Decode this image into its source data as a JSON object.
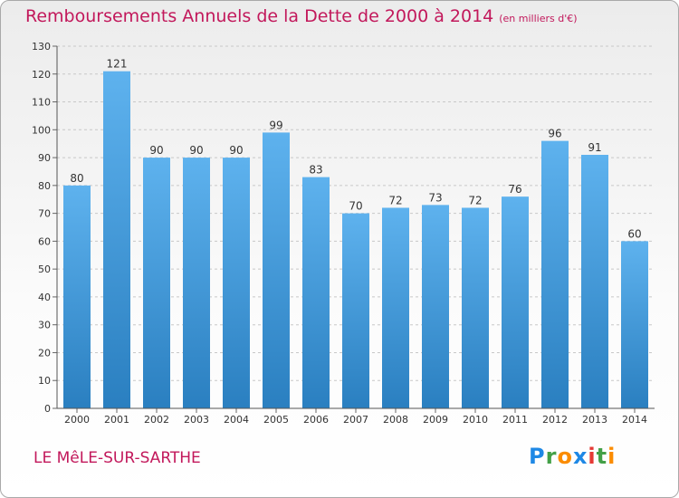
{
  "header": {
    "title": "Remboursements Annuels de la Dette de 2000 à 2014",
    "unit": "(en milliers d'€)"
  },
  "footer": {
    "place": "LE MêLE-SUR-SARTHE"
  },
  "logo": {
    "letters": [
      {
        "ch": "P",
        "color": "#1e88e5"
      },
      {
        "ch": "r",
        "color": "#43a047"
      },
      {
        "ch": "o",
        "color": "#fb8c00"
      },
      {
        "ch": "x",
        "color": "#1e88e5"
      },
      {
        "ch": "i",
        "color": "#e53935"
      },
      {
        "ch": "t",
        "color": "#43a047"
      },
      {
        "ch": "i",
        "color": "#fb8c00"
      }
    ]
  },
  "colors": {
    "accent": "#c2185b",
    "bar_light": "#5eb2ee",
    "bar_dark": "#2a7fc0",
    "grid": "#c8c8c8",
    "text": "#333333"
  },
  "chart_data": {
    "type": "bar",
    "title": "Remboursements Annuels de la Dette de 2000 à 2014",
    "subtitle": "(en milliers d'€)",
    "categories": [
      "2000",
      "2001",
      "2002",
      "2003",
      "2004",
      "2005",
      "2006",
      "2007",
      "2008",
      "2009",
      "2010",
      "2011",
      "2012",
      "2013",
      "2014"
    ],
    "values": [
      80,
      121,
      90,
      90,
      90,
      99,
      83,
      70,
      72,
      73,
      72,
      76,
      96,
      91,
      60
    ],
    "ylim": [
      0,
      130
    ],
    "yticks": [
      0,
      10,
      20,
      30,
      40,
      50,
      60,
      70,
      80,
      90,
      100,
      110,
      120,
      130
    ],
    "grid": true,
    "data_labels": true,
    "xlabel": "",
    "ylabel": ""
  }
}
